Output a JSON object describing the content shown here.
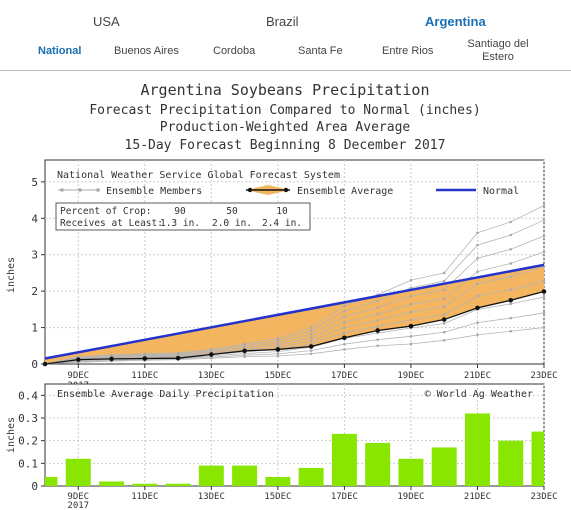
{
  "country_tabs": [
    {
      "label": "USA",
      "active": false
    },
    {
      "label": "Brazil",
      "active": false
    },
    {
      "label": "Argentina",
      "active": true
    }
  ],
  "region_tabs": [
    {
      "label": "National",
      "active": true
    },
    {
      "label": "Buenos Aires",
      "active": false
    },
    {
      "label": "Cordoba",
      "active": false
    },
    {
      "label": "Santa Fe",
      "active": false
    },
    {
      "label": "Entre Rios",
      "active": false
    },
    {
      "label": "Santiago del",
      "label2": "Estero",
      "active": false
    }
  ],
  "colors": {
    "accent": "#1a6fb3",
    "normal_line": "#2433cc",
    "band_fill": "#f4b560",
    "bar_fill": "#88e600"
  },
  "chart_data": [
    {
      "type": "line",
      "title_lines": [
        "Argentina Soybeans Precipitation",
        "Forecast Precipitation Compared to Normal (inches)",
        "Production-Weighted Area Average",
        "15-Day Forecast Beginning 8 December 2017"
      ],
      "source_text": "National Weather Service Global Forecast System",
      "legend": {
        "members": "Ensemble Members",
        "average": "Ensemble Average",
        "normal": "Normal"
      },
      "percent_table": {
        "row1_label": "Percent of Crop:",
        "row1_values": [
          "90",
          "50",
          "10"
        ],
        "row2_label": "Receives at Least:",
        "row2_values": [
          "1.3 in.",
          "2.0 in.",
          "2.4 in."
        ]
      },
      "ylabel": "inches",
      "ylim": [
        0,
        5.6
      ],
      "yticks": [
        "0",
        "1",
        "2",
        "3",
        "4",
        "5"
      ],
      "xlim": [
        8,
        23
      ],
      "x_tick_labels": [
        {
          "x": 9,
          "label": "9DEC",
          "label2": "2017"
        },
        {
          "x": 11,
          "label": "11DEC"
        },
        {
          "x": 13,
          "label": "13DEC"
        },
        {
          "x": 15,
          "label": "15DEC"
        },
        {
          "x": 17,
          "label": "17DEC"
        },
        {
          "x": 19,
          "label": "19DEC"
        },
        {
          "x": 21,
          "label": "21DEC"
        },
        {
          "x": 23,
          "label": "23DEC"
        }
      ],
      "normal": {
        "x": [
          8,
          23
        ],
        "y": [
          0.15,
          2.72
        ]
      },
      "ensemble_average": {
        "x": [
          8,
          9,
          10,
          11,
          12,
          13,
          14,
          15,
          16,
          17,
          18,
          19,
          20,
          21,
          22,
          23
        ],
        "y": [
          0.0,
          0.12,
          0.14,
          0.15,
          0.16,
          0.26,
          0.36,
          0.4,
          0.48,
          0.72,
          0.92,
          1.04,
          1.22,
          1.54,
          1.75,
          1.99
        ]
      },
      "ensemble_members_envelope": {
        "x": [
          8,
          9,
          10,
          11,
          12,
          13,
          14,
          15,
          16,
          17,
          18,
          19,
          20,
          21,
          22,
          23
        ],
        "low": [
          0.0,
          0.05,
          0.08,
          0.1,
          0.12,
          0.16,
          0.2,
          0.22,
          0.28,
          0.4,
          0.5,
          0.55,
          0.65,
          0.8,
          0.9,
          1.0
        ],
        "high": [
          0.0,
          0.2,
          0.25,
          0.28,
          0.3,
          0.4,
          0.55,
          0.7,
          1.0,
          1.6,
          1.9,
          2.3,
          2.5,
          3.6,
          3.9,
          4.35
        ]
      }
    },
    {
      "type": "bar",
      "title": "Ensemble Average Daily Precipitation",
      "credit": "© World Ag Weather",
      "ylabel": "inches",
      "ylim": [
        0,
        0.45
      ],
      "yticks": [
        "0",
        "0.1",
        "0.2",
        "0.3",
        "0.4"
      ],
      "x_tick_labels": [
        {
          "x": 9,
          "label": "9DEC",
          "label2": "2017"
        },
        {
          "x": 11,
          "label": "11DEC"
        },
        {
          "x": 13,
          "label": "13DEC"
        },
        {
          "x": 15,
          "label": "15DEC"
        },
        {
          "x": 17,
          "label": "17DEC"
        },
        {
          "x": 19,
          "label": "19DEC"
        },
        {
          "x": 21,
          "label": "21DEC"
        },
        {
          "x": 23,
          "label": "23DEC"
        }
      ],
      "x": [
        8,
        9,
        10,
        11,
        12,
        13,
        14,
        15,
        16,
        17,
        18,
        19,
        20,
        21,
        22,
        23
      ],
      "values": [
        0.04,
        0.12,
        0.02,
        0.01,
        0.01,
        0.09,
        0.09,
        0.04,
        0.08,
        0.23,
        0.19,
        0.12,
        0.17,
        0.32,
        0.2,
        0.24
      ]
    }
  ]
}
